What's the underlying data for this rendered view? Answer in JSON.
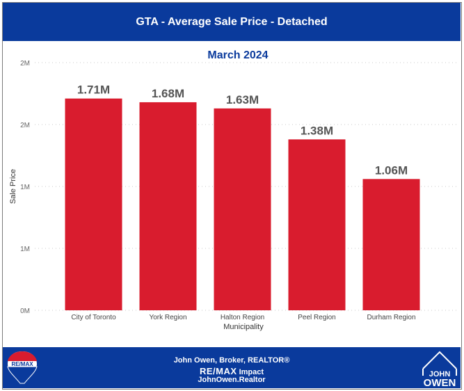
{
  "header": {
    "title": "GTA - Average Sale Price - Detached"
  },
  "chart_data": {
    "type": "bar",
    "title": "March 2024",
    "xlabel": "Municipality",
    "ylabel": "Sale Price",
    "categories": [
      "City of Toronto",
      "York Region",
      "Halton Region",
      "Peel Region",
      "Durham Region"
    ],
    "values": [
      1.71,
      1.68,
      1.63,
      1.38,
      1.06
    ],
    "data_labels": [
      "1.71M",
      "1.68M",
      "1.63M",
      "1.38M",
      "1.06M"
    ],
    "value_unit": "M",
    "ylim": [
      0,
      2
    ],
    "yticks": [
      0,
      0.5,
      1,
      1.5,
      2
    ],
    "ytick_labels": [
      "0M",
      "1M",
      "1M",
      "2M",
      "2M"
    ],
    "grid": true,
    "bar_color": "#d91c2e"
  },
  "footer": {
    "line1": "John Owen, Broker, REALTOR®",
    "brand": "RE/MAX",
    "office": "Impact",
    "website": "JohnOwen.Realtor",
    "left_logo_text": "RE/MAX",
    "right_logo_line1": "JOHN",
    "right_logo_line2": "OWEN"
  },
  "colors": {
    "header_bg": "#0a3a9c",
    "bar": "#d91c2e"
  }
}
